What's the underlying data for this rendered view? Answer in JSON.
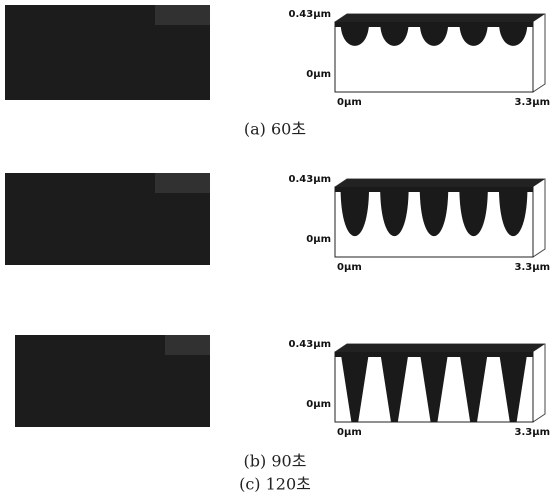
{
  "panels": [
    {
      "caption": "(a) 60초",
      "y_top": "0.43μm",
      "y_bottom": "0μm",
      "x_left": "0μm",
      "x_right": "3.3μm"
    },
    {
      "caption": "(b) 90초",
      "y_top": "0.43μm",
      "y_bottom": "0μm",
      "x_left": "0μm",
      "x_right": "3.3μm"
    },
    {
      "caption": "(c) 120초",
      "y_top": "0.43μm",
      "y_bottom": "0μm",
      "x_left": "0μm",
      "x_right": "3.3μm"
    }
  ]
}
